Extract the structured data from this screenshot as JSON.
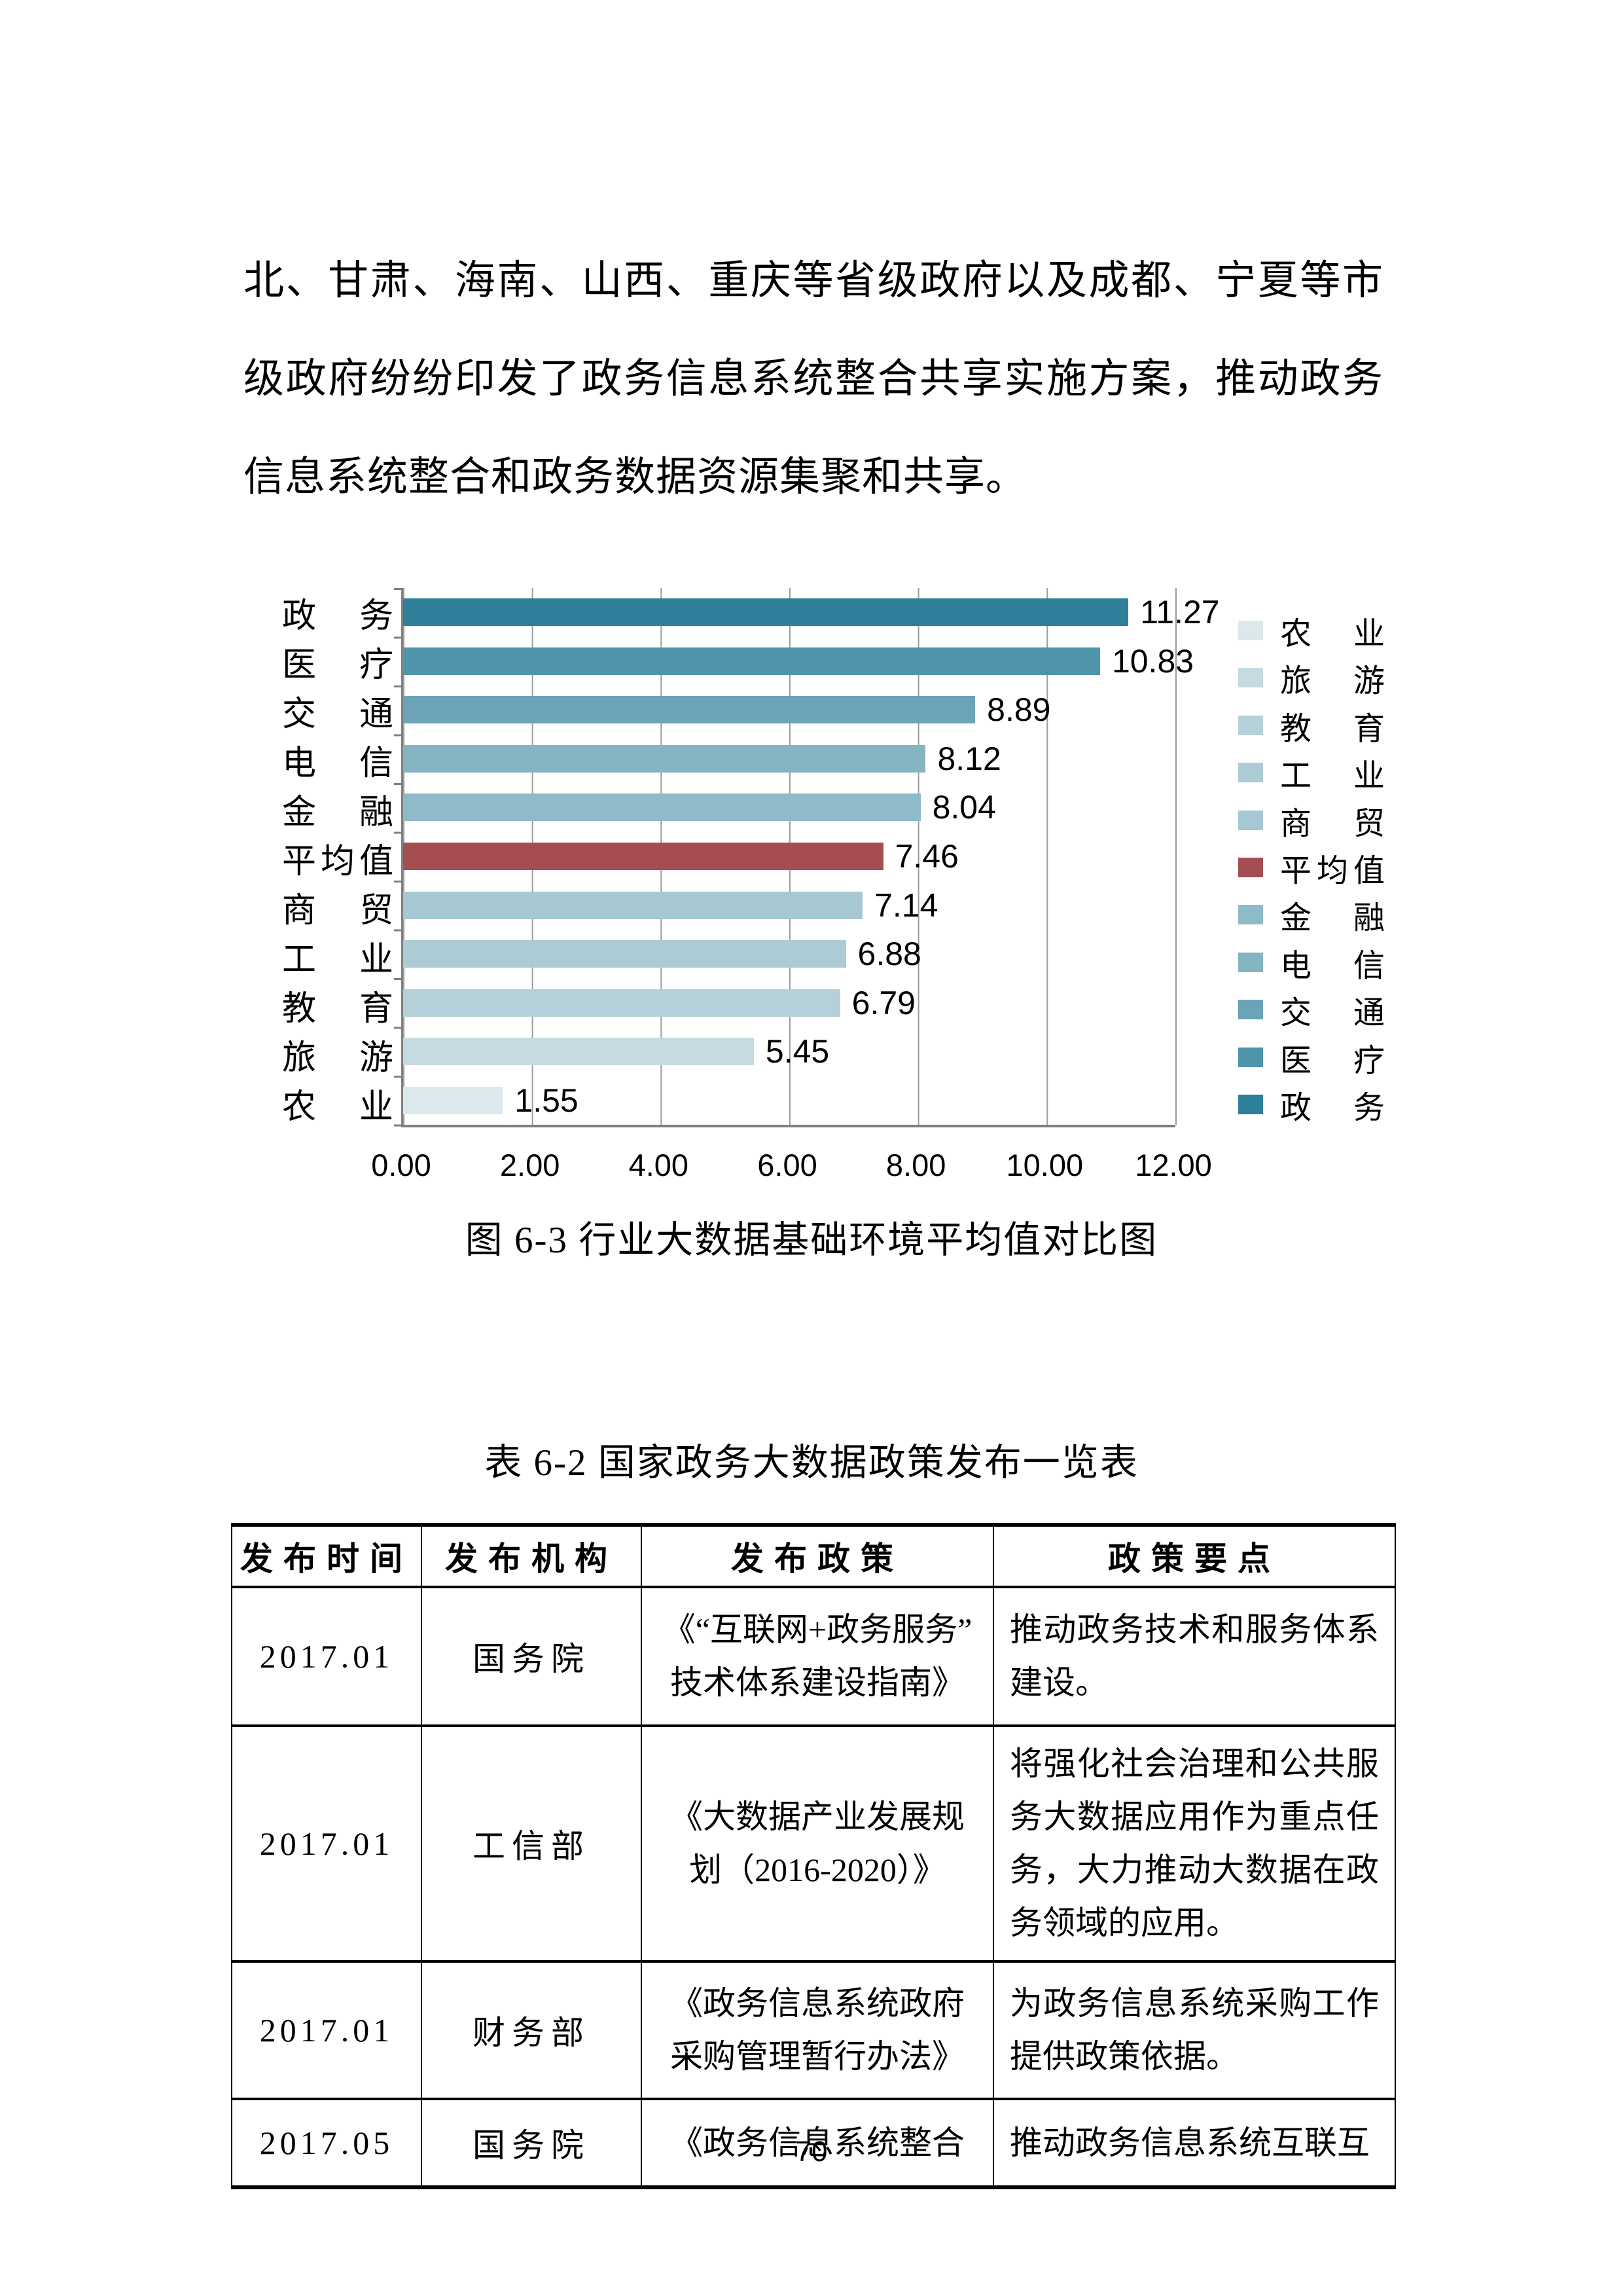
{
  "document": {
    "paragraph": "北、甘肃、海南、山西、重庆等省级政府以及成都、宁夏等市级政府纷纷印发了政务信息系统整合共享实施方案，推动政务信息系统整合和政务数据资源集聚和共享。",
    "figure_caption": "图 6-3 行业大数据基础环境平均值对比图",
    "table_title": "表 6-2 国家政务大数据政策发布一览表",
    "page_number": "70"
  },
  "chart_data": {
    "type": "bar",
    "orientation": "horizontal",
    "title": "图 6-3 行业大数据基础环境平均值对比图",
    "xlabel": "",
    "ylabel": "",
    "xlim": [
      0,
      12
    ],
    "x_ticks": [
      "0.00",
      "2.00",
      "4.00",
      "6.00",
      "8.00",
      "10.00",
      "12.00"
    ],
    "grid": true,
    "legend_position": "right",
    "rows": [
      {
        "label": "政务",
        "value": 11.27,
        "color": "#2E7F99"
      },
      {
        "label": "医疗",
        "value": 10.83,
        "color": "#4E95AB"
      },
      {
        "label": "交通",
        "value": 8.89,
        "color": "#6AA4B6"
      },
      {
        "label": "电信",
        "value": 8.12,
        "color": "#84B3C2"
      },
      {
        "label": "金融",
        "value": 8.04,
        "color": "#8FBAC8"
      },
      {
        "label": "平均值",
        "value": 7.46,
        "color": "#A64D52"
      },
      {
        "label": "商贸",
        "value": 7.14,
        "color": "#A6C8D2"
      },
      {
        "label": "工业",
        "value": 6.88,
        "color": "#ACCBD4"
      },
      {
        "label": "教育",
        "value": 6.79,
        "color": "#B5D0D9"
      },
      {
        "label": "旅游",
        "value": 5.45,
        "color": "#C5DAE1"
      },
      {
        "label": "农业",
        "value": 1.55,
        "color": "#DCE9EC"
      }
    ],
    "legend": [
      {
        "label": "农业",
        "color": "#DCE9EC"
      },
      {
        "label": "旅游",
        "color": "#C5DAE1"
      },
      {
        "label": "教育",
        "color": "#B5D0D9"
      },
      {
        "label": "工业",
        "color": "#ACCBD4"
      },
      {
        "label": "商贸",
        "color": "#A6C8D2"
      },
      {
        "label": "平均值",
        "color": "#A64D52"
      },
      {
        "label": "金融",
        "color": "#8FBAC8"
      },
      {
        "label": "电信",
        "color": "#84B3C2"
      },
      {
        "label": "交通",
        "color": "#6AA4B6"
      },
      {
        "label": "医疗",
        "color": "#4E95AB"
      },
      {
        "label": "政务",
        "color": "#2E7F99"
      }
    ]
  },
  "table": {
    "headers": [
      "发布时间",
      "发布机构",
      "发布政策",
      "政策要点"
    ],
    "rows": [
      {
        "time": "2017.01",
        "org": "国务院",
        "policy": "《“互联网+政务服务”\n技术体系建设指南》",
        "points": "推动政务技术和服务体系建设。"
      },
      {
        "time": "2017.01",
        "org": "工信部",
        "policy": "《大数据产业发展规\n划（2016-2020）》",
        "points": "将强化社会治理和公共服务大数据应用作为重点任务，大力推动大数据在政务领域的应用。"
      },
      {
        "time": "2017.01",
        "org": "财务部",
        "policy": "《政务信息系统政府\n采购管理暂行办法》",
        "points": "为政务信息系统采购工作提供政策依据。"
      },
      {
        "time": "2017.05",
        "org": "国务院",
        "policy": "《政务信息系统整合",
        "points": "推动政务信息系统互联互"
      }
    ]
  }
}
